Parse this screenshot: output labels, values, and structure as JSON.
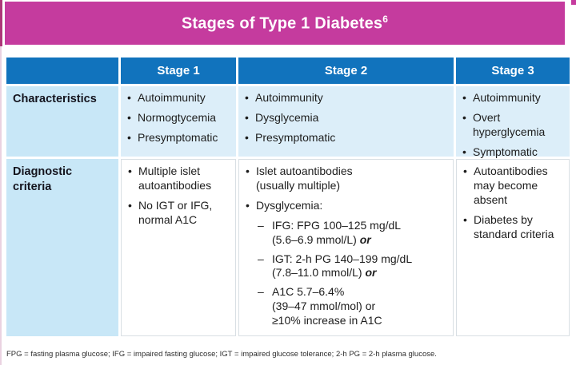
{
  "page": {
    "title": "Stages of Type 1 Diabetes",
    "title_superscript": "6",
    "footnote": "FPG = fasting plasma glucose; IFG = impaired fasting glucose; IGT = impaired glucose tolerance; 2-h PG = 2-h plasma glucose."
  },
  "colors": {
    "banner_magenta": "#C53B9E",
    "header_blue": "#1173BD",
    "row_label_blue": "#C8E7F7",
    "characteristics_cell_blue": "#DCEEF9",
    "diagnostic_cell_white": "#FFFFFF",
    "header_text": "#FFFFFF",
    "body_text": "#1D1D1D"
  },
  "table": {
    "column_headers": [
      "Stage 1",
      "Stage 2",
      "Stage 3"
    ],
    "rows": [
      {
        "label": "Characteristics",
        "cells": [
          {
            "items": [
              {
                "text": "Autoimmunity"
              },
              {
                "text": "Normogtycemia"
              },
              {
                "text": "Presymptomatic"
              }
            ]
          },
          {
            "items": [
              {
                "text": "Autoimmunity"
              },
              {
                "text": "Dysglycemia"
              },
              {
                "text": "Presymptomatic"
              }
            ]
          },
          {
            "items": [
              {
                "text": "Autoimmunity"
              },
              {
                "text": "Overt\nhyperglycemia"
              },
              {
                "text": "Symptomatic"
              }
            ]
          }
        ]
      },
      {
        "label": "Diagnostic\ncriteria",
        "cells": [
          {
            "items": [
              {
                "text": "Multiple islet\nautoantibodies"
              },
              {
                "text": "No IGT or IFG,\nnormal A1C"
              }
            ]
          },
          {
            "items": [
              {
                "text": "Islet autoantibodies\n(usually multiple)"
              },
              {
                "text": "Dysglycemia:",
                "subitems": [
                  {
                    "text": "IFG: FPG 100–125 mg/dL\n(5.6–6.9 mmol/L)",
                    "or": "or"
                  },
                  {
                    "text": "IGT: 2-h PG 140–199 mg/dL\n(7.8–11.0 mmol/L)",
                    "or": "or"
                  },
                  {
                    "text": "A1C 5.7–6.4%\n(39–47 mmol/mol) or\n≥10% increase in A1C"
                  }
                ]
              }
            ]
          },
          {
            "items": [
              {
                "text": "Autoantibodies\nmay become\nabsent"
              },
              {
                "text": "Diabetes by\nstandard criteria"
              }
            ]
          }
        ]
      }
    ]
  }
}
